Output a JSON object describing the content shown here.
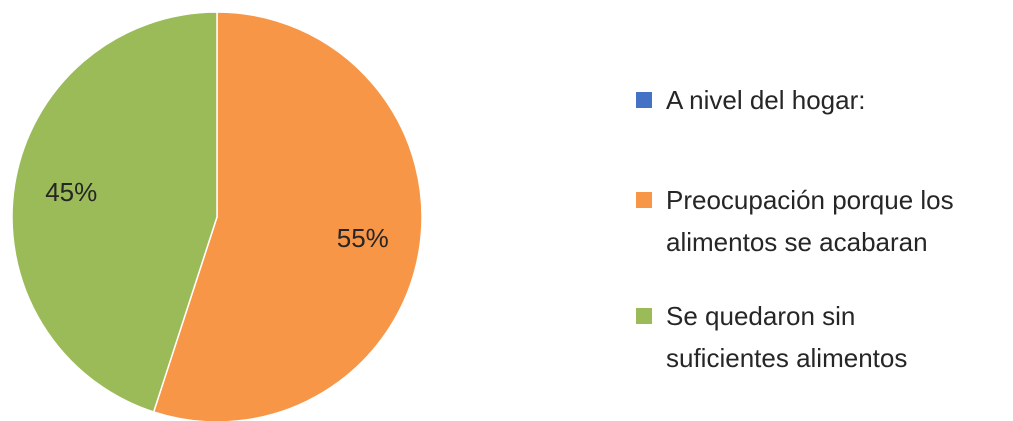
{
  "chart_data": {
    "type": "pie",
    "title": "",
    "start_angle_deg": 0,
    "direction": "clockwise",
    "series": [
      {
        "name": "A nivel del hogar:",
        "color": "#4472C4",
        "value": 0,
        "label": ""
      },
      {
        "name": "Preocupación porque los alimentos se acabaran",
        "color": "#F79646",
        "value": 55,
        "label": "55%"
      },
      {
        "name": "Se quedaron sin suficientes alimentos",
        "color": "#9BBB59",
        "value": 45,
        "label": "45%"
      }
    ],
    "legend": {
      "position": "right",
      "lines": [
        [
          "A nivel del hogar:"
        ],
        [
          "Preocupación porque los",
          "alimentos se acabaran"
        ],
        [
          "Se quedaron sin",
          "suficientes alimentos"
        ]
      ]
    }
  }
}
